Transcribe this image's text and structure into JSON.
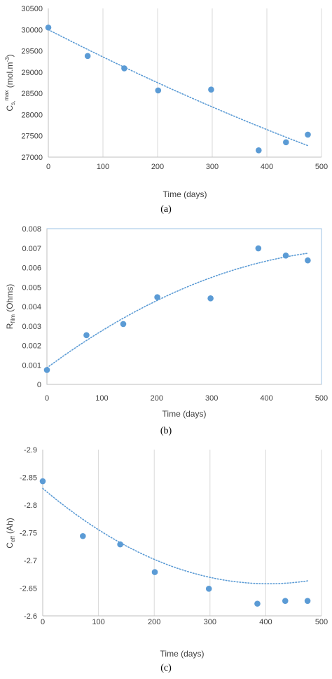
{
  "chart_data": [
    {
      "type": "scatter",
      "caption": "(a)",
      "xlabel": "Time (days)",
      "ylabel": "C_s,max (mol.m⁻³)",
      "ylabel_parts": {
        "base": "C",
        "sub": "s,",
        "sup": "max",
        "units": "(mol.m",
        "units_sup": "-3",
        "units_close": ")"
      },
      "xlim": [
        0,
        500
      ],
      "ylim": [
        27000,
        30500
      ],
      "xticks": [
        0,
        100,
        200,
        300,
        400,
        500
      ],
      "yticks": [
        27000,
        27500,
        28000,
        28500,
        29000,
        29500,
        30000,
        30500
      ],
      "ytick_labels": [
        "27000",
        "27500",
        "28000",
        "28500",
        "29000",
        "29500",
        "30000",
        "30500"
      ],
      "grid": "x",
      "trendline": "polynomial",
      "series": [
        {
          "x": [
            0,
            72,
            139,
            201,
            298,
            385,
            435,
            475
          ],
          "y": [
            30050,
            29380,
            29090,
            28570,
            28590,
            27160,
            27350,
            27530
          ]
        }
      ],
      "trend": {
        "x": [
          0,
          475
        ],
        "coeffs": [
          30000,
          -6.6,
          0.0018
        ]
      }
    },
    {
      "type": "scatter",
      "caption": "(b)",
      "xlabel": "Time (days)",
      "ylabel": "R_film (Ohms)",
      "ylabel_parts": {
        "base": "R",
        "sub": "film",
        "units": " (Ohms)"
      },
      "xlim": [
        0,
        500
      ],
      "ylim": [
        0,
        0.008
      ],
      "xticks": [
        0,
        100,
        200,
        300,
        400,
        500
      ],
      "yticks": [
        0,
        0.001,
        0.002,
        0.003,
        0.004,
        0.005,
        0.006,
        0.007,
        0.008
      ],
      "ytick_labels": [
        "0",
        "0.001",
        "0.002",
        "0.003",
        "0.004",
        "0.005",
        "0.006",
        "0.007",
        "0.008"
      ],
      "grid": "none",
      "trendline": "polynomial",
      "series": [
        {
          "x": [
            0,
            72,
            139,
            201,
            298,
            385,
            435,
            475
          ],
          "y": [
            0.00074,
            0.00253,
            0.0031,
            0.00448,
            0.00442,
            0.00699,
            0.00662,
            0.00637
          ]
        }
      ],
      "trend": {
        "x": [
          0,
          475
        ],
        "coeffs": [
          0.00085,
          2.08e-05,
          -1.77e-08
        ]
      }
    },
    {
      "type": "scatter",
      "caption": "(c)",
      "xlabel": "Time (days)",
      "ylabel": "C_eff (Ah)",
      "ylabel_parts": {
        "base": "C",
        "sub": "eff",
        "units": " (Ah)"
      },
      "xlim": [
        0,
        500
      ],
      "ylim": [
        -2.9,
        -2.6
      ],
      "xticks": [
        0,
        100,
        200,
        300,
        400,
        500
      ],
      "yticks": [
        -2.9,
        -2.85,
        -2.8,
        -2.75,
        -2.7,
        -2.65,
        -2.6
      ],
      "ytick_labels": [
        "-2.9",
        "-2.85",
        "-2.8",
        "-2.75",
        "-2.7",
        "-2.65",
        "-2.6"
      ],
      "grid": "x",
      "trendline": "polynomial",
      "series": [
        {
          "x": [
            0,
            72,
            139,
            201,
            298,
            385,
            435,
            475
          ],
          "y": [
            -2.843,
            -2.744,
            -2.729,
            -2.679,
            -2.649,
            -2.622,
            -2.627,
            -2.627
          ]
        }
      ],
      "trend": {
        "x": [
          0,
          475
        ],
        "coeffs": [
          -2.83,
          0.00085,
          -1.05e-06
        ]
      }
    }
  ],
  "colors": {
    "marker": "#5b9bd5",
    "trend": "#5b9bd5",
    "grid": "#d9d9d9",
    "frame_b": "#9dc3e6",
    "text": "#404040"
  }
}
